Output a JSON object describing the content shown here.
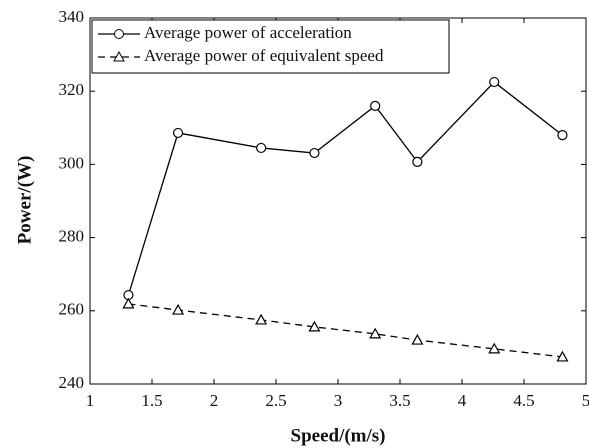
{
  "chart_data": {
    "type": "line",
    "x_label": "Speed/(m/s)",
    "y_label": "Power/(W)",
    "xlim": [
      1,
      5
    ],
    "xticks": [
      1,
      1.5,
      2,
      2.5,
      3,
      3.5,
      4,
      4.5,
      5
    ],
    "ylim": [
      240,
      340
    ],
    "yticks": [
      240,
      260,
      280,
      300,
      320,
      340
    ],
    "grid": false,
    "legend": "upper left",
    "x": [
      1.31,
      1.71,
      2.38,
      2.81,
      3.3,
      3.64,
      4.26,
      4.81
    ],
    "series": [
      {
        "name": "Average power of acceleration",
        "color": "#000000",
        "linestyle": "solid",
        "marker": "circle",
        "values": [
          264.3,
          308.6,
          304.5,
          303.1,
          316,
          300.7,
          322.5,
          308
        ]
      },
      {
        "name": "Average power of equivalent speed",
        "color": "#000000",
        "linestyle": "dashed",
        "marker": "triangle",
        "values": [
          261.9,
          260.2,
          257.5,
          255.6,
          253.7,
          252,
          249.6,
          247.4
        ]
      }
    ]
  }
}
